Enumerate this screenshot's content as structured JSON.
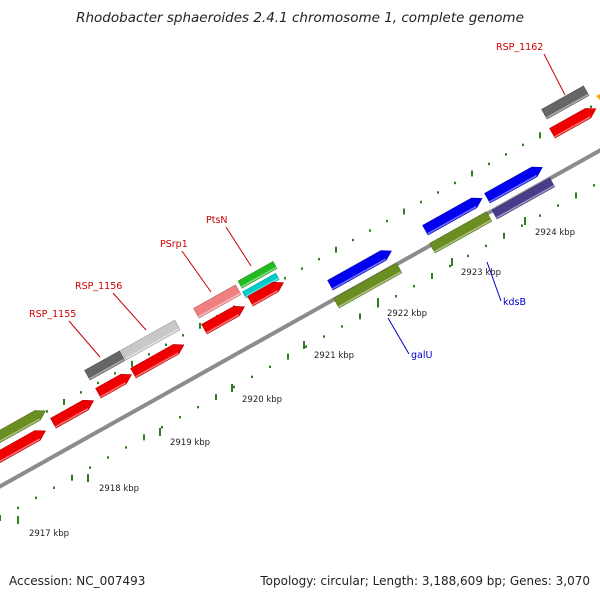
{
  "title": "Rhodobacter sphaeroides 2.4.1 chromosome 1, complete genome",
  "footer": {
    "accession": "Accession: NC_007493",
    "summary": "Topology: circular; Length: 3,188,609 bp; Genes: 3,070"
  },
  "colors": {
    "backbone": "#8c8c8c",
    "ticks": "#2e7d1e",
    "label_red": "#cc0000",
    "label_blue": "#0000cc",
    "gene_red": "#ee0000",
    "gene_green": "#6b8e23",
    "gene_blue": "#0000ee",
    "gene_gray": "#666666",
    "gene_lightgray": "#c8c8c8",
    "gene_pink": "#f08080",
    "gene_purple": "#483d8b",
    "gene_cyan": "#00cccc",
    "gene_brightgreen": "#22bb22"
  },
  "ruler": {
    "labels": [
      "2917 kbp",
      "2918 kbp",
      "2919 kbp",
      "2920 kbp",
      "2921 kbp",
      "2922 kbp",
      "2923 kbp",
      "2924 kbp"
    ]
  },
  "gene_labels": [
    {
      "text": "RSP_1155",
      "color": "red"
    },
    {
      "text": "RSP_1156",
      "color": "red"
    },
    {
      "text": "PSrp1",
      "color": "red"
    },
    {
      "text": "PtsN",
      "color": "red"
    },
    {
      "text": "RSP_1162",
      "color": "red"
    },
    {
      "text": "galU",
      "color": "blue"
    },
    {
      "text": "kdsB",
      "color": "blue"
    }
  ]
}
